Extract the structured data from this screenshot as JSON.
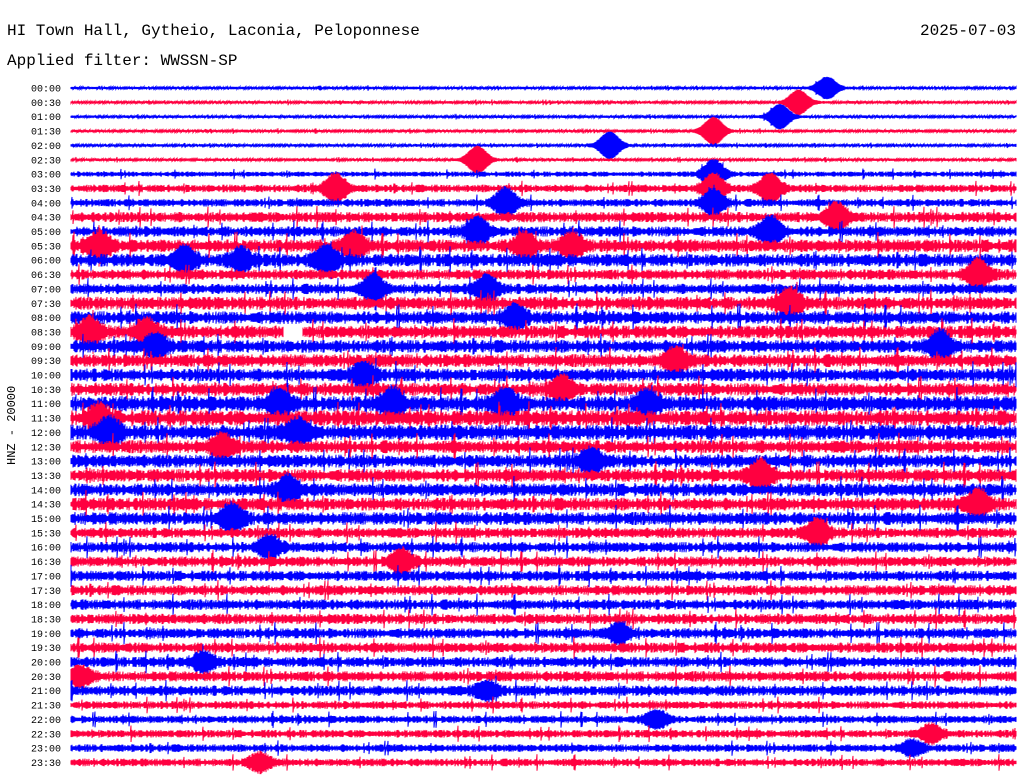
{
  "header": {
    "title": "HI Town Hall, Gytheio, Laconia, Peloponnese",
    "date": "2025-07-03",
    "filter": "Applied filter: WWSSN-SP"
  },
  "colors": {
    "odd_trace": "#0000ff",
    "even_trace": "#ff0040",
    "background": "#ffffff"
  },
  "chart_data": {
    "type": "helicorder",
    "ylabel": "HNZ - 20000",
    "row_labels": [
      "00:00",
      "00:30",
      "01:00",
      "01:30",
      "02:00",
      "02:30",
      "03:00",
      "03:30",
      "04:00",
      "04:30",
      "05:00",
      "05:30",
      "06:00",
      "06:30",
      "07:00",
      "07:30",
      "08:00",
      "08:30",
      "09:00",
      "09:30",
      "10:00",
      "10:30",
      "11:00",
      "11:30",
      "12:00",
      "12:30",
      "13:00",
      "13:30",
      "14:00",
      "14:30",
      "15:00",
      "15:30",
      "16:00",
      "16:30",
      "17:00",
      "17:30",
      "18:00",
      "18:30",
      "19:00",
      "19:30",
      "20:00",
      "20:30",
      "21:00",
      "21:30",
      "22:00",
      "22:30",
      "23:00",
      "23:30"
    ],
    "base_amplitude": [
      1,
      1,
      1,
      1,
      1,
      1,
      2,
      3,
      3,
      4,
      4,
      5,
      5,
      4,
      4,
      5,
      5,
      5,
      5,
      5,
      5,
      5,
      6,
      6,
      6,
      5,
      5,
      5,
      5,
      5,
      5,
      4,
      4,
      4,
      4,
      4,
      4,
      4,
      4,
      4,
      4,
      4,
      4,
      3,
      3,
      3,
      3,
      3
    ],
    "events": [
      [
        0.8,
        0.8
      ],
      [
        0.77,
        0.9
      ],
      [
        0.75,
        0.9
      ],
      [
        0.68,
        1.0
      ],
      [
        0.57,
        1.0
      ],
      [
        0.43,
        1.0
      ],
      [
        0.68,
        1.0
      ],
      [
        0.28,
        1.0,
        0.68,
        1.0,
        0.74,
        1.0
      ],
      [
        0.46,
        1.0,
        0.68,
        0.9
      ],
      [
        0.81,
        0.9
      ],
      [
        0.43,
        0.9,
        0.74,
        1.0
      ],
      [
        0.03,
        0.8,
        0.3,
        0.8,
        0.48,
        0.8,
        0.53,
        0.8
      ],
      [
        0.12,
        0.9,
        0.18,
        0.7,
        0.27,
        0.9
      ],
      [
        0.96,
        1.0
      ],
      [
        0.32,
        0.9,
        0.44,
        0.9
      ],
      [
        0.76,
        0.9
      ],
      [
        0.47,
        0.8
      ],
      [
        0.02,
        0.9,
        0.08,
        0.8
      ],
      [
        0.09,
        0.8,
        0.92,
        1.0
      ],
      [
        0.64,
        0.8
      ],
      [
        0.31,
        0.8
      ],
      [
        0.52,
        0.8
      ],
      [
        0.22,
        0.9,
        0.34,
        0.9,
        0.46,
        0.9,
        0.61,
        0.8
      ],
      [
        0.03,
        0.8
      ],
      [
        0.04,
        0.9,
        0.24,
        0.8
      ],
      [
        0.16,
        0.8
      ],
      [
        0.55,
        0.8
      ],
      [
        0.73,
        1.0
      ],
      [
        0.23,
        0.9
      ],
      [
        0.96,
        0.9
      ],
      [
        0.17,
        0.9
      ],
      [
        0.79,
        0.9
      ],
      [
        0.21,
        0.7
      ],
      [
        0.35,
        0.8
      ],
      [],
      [],
      [],
      [],
      [
        0.58,
        0.6
      ],
      [],
      [
        0.14,
        0.6
      ],
      [
        0.01,
        0.6
      ],
      [
        0.44,
        0.6
      ],
      [],
      [
        0.62,
        0.6
      ],
      [
        0.91,
        0.6
      ],
      [
        0.89,
        0.5
      ],
      [
        0.2,
        0.6
      ]
    ],
    "gaps": [
      [
        17,
        0.225,
        0.245
      ]
    ]
  }
}
